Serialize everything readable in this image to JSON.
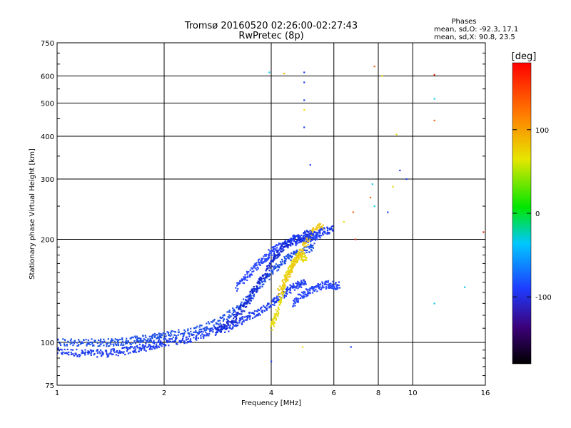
{
  "chart_data": {
    "type": "scatter",
    "title": "Tromsø 20160520 02:26:00-02:27:43",
    "subtitle": "RwPretec (8p)",
    "xlabel": "Frequency [MHz]",
    "ylabel": "Stationary phase Virtual Height [km]",
    "xscale": "log",
    "yscale": "log",
    "xlim": [
      1,
      16
    ],
    "ylim": [
      75,
      750
    ],
    "xticks": [
      1,
      2,
      4,
      6,
      8,
      10,
      16
    ],
    "xtick_labels": [
      "1",
      "2",
      "4",
      "6",
      "8",
      "10",
      "16"
    ],
    "yticks": [
      75,
      100,
      200,
      300,
      400,
      500,
      600,
      750
    ],
    "ytick_labels": [
      "75",
      "100",
      "200",
      "300",
      "400",
      "500",
      "600",
      "750"
    ],
    "grid": true,
    "stats": {
      "heading": "Phases",
      "lines": [
        "mean, sd,O: -92.3, 17.1",
        "mean, sd,X:  90.8, 23.5"
      ]
    },
    "colorbar": {
      "label": "[deg]",
      "range": [
        -180,
        180
      ],
      "ticks": [
        100,
        0,
        -100
      ],
      "tick_labels": [
        "100",
        "0",
        "-100"
      ]
    },
    "traces": [
      {
        "name": "trace-1",
        "color": "#1e3cf0",
        "points": [
          [
            1.0,
            94
          ],
          [
            1.2,
            93
          ],
          [
            1.4,
            93
          ],
          [
            1.6,
            95
          ],
          [
            1.8,
            97
          ],
          [
            2.0,
            100
          ],
          [
            2.3,
            102
          ],
          [
            2.6,
            106
          ],
          [
            3.0,
            110
          ],
          [
            3.4,
            118
          ],
          [
            3.8,
            125
          ],
          [
            4.2,
            135
          ],
          [
            4.6,
            145
          ],
          [
            5.0,
            150
          ]
        ]
      },
      {
        "name": "trace-2",
        "color": "#1e50e6",
        "points": [
          [
            1.0,
            100
          ],
          [
            1.2,
            100
          ],
          [
            1.4,
            100
          ],
          [
            1.6,
            101
          ],
          [
            1.8,
            103
          ],
          [
            2.0,
            105
          ],
          [
            2.4,
            108
          ],
          [
            2.8,
            114
          ],
          [
            3.2,
            125
          ],
          [
            3.6,
            140
          ],
          [
            4.0,
            160
          ],
          [
            4.4,
            175
          ],
          [
            4.8,
            185
          ],
          [
            5.3,
            190
          ]
        ]
      },
      {
        "name": "trace-3",
        "color": "#2846ff",
        "points": [
          [
            3.2,
            145
          ],
          [
            3.5,
            160
          ],
          [
            3.8,
            175
          ],
          [
            4.1,
            188
          ],
          [
            4.5,
            195
          ],
          [
            5.0,
            200
          ],
          [
            5.5,
            205
          ]
        ]
      },
      {
        "name": "trace-4",
        "color": "#1428d2",
        "points": [
          [
            2.8,
            108
          ],
          [
            3.1,
            115
          ],
          [
            3.4,
            130
          ],
          [
            3.7,
            150
          ],
          [
            4.0,
            170
          ],
          [
            4.3,
            190
          ],
          [
            4.7,
            200
          ],
          [
            5.2,
            210
          ]
        ]
      },
      {
        "name": "trace-5",
        "color": "#e6dc14",
        "points": [
          [
            4.0,
            110
          ],
          [
            4.2,
            125
          ],
          [
            4.4,
            155
          ],
          [
            4.6,
            170
          ],
          [
            4.8,
            180
          ],
          [
            5.0,
            175
          ]
        ]
      },
      {
        "name": "trace-6",
        "color": "#f0c814",
        "points": [
          [
            4.2,
            140
          ],
          [
            4.5,
            160
          ],
          [
            4.8,
            180
          ],
          [
            5.2,
            210
          ],
          [
            5.6,
            220
          ]
        ]
      },
      {
        "name": "trace-7",
        "color": "#2846ff",
        "points": [
          [
            4.6,
            130
          ],
          [
            5.0,
            140
          ],
          [
            5.4,
            145
          ],
          [
            5.8,
            148
          ],
          [
            6.2,
            145
          ]
        ]
      },
      {
        "name": "trace-8",
        "color": "#1e3cf0",
        "points": [
          [
            4.5,
            200
          ],
          [
            5.0,
            205
          ],
          [
            5.5,
            210
          ],
          [
            6.0,
            215
          ]
        ]
      }
    ],
    "isolated_points": [
      {
        "x": 3.95,
        "y": 615,
        "color": "#14c8e6"
      },
      {
        "x": 4.35,
        "y": 610,
        "color": "#f0b400"
      },
      {
        "x": 4.95,
        "y": 615,
        "color": "#1e3cf0"
      },
      {
        "x": 4.95,
        "y": 575,
        "color": "#1e3cf0"
      },
      {
        "x": 4.95,
        "y": 510,
        "color": "#1e3cf0"
      },
      {
        "x": 4.95,
        "y": 478,
        "color": "#f0dc14"
      },
      {
        "x": 4.95,
        "y": 425,
        "color": "#1e3cf0"
      },
      {
        "x": 5.15,
        "y": 330,
        "color": "#1e3cf0"
      },
      {
        "x": 7.8,
        "y": 640,
        "color": "#f06414"
      },
      {
        "x": 8.2,
        "y": 600,
        "color": "#e6dc14"
      },
      {
        "x": 11.5,
        "y": 605,
        "color": "#e63c14"
      },
      {
        "x": 11.5,
        "y": 515,
        "color": "#14c8e6"
      },
      {
        "x": 11.5,
        "y": 445,
        "color": "#f06414"
      },
      {
        "x": 9.0,
        "y": 405,
        "color": "#e6dc14"
      },
      {
        "x": 9.2,
        "y": 318,
        "color": "#1e3cf0"
      },
      {
        "x": 9.6,
        "y": 300,
        "color": "#1e3cf0"
      },
      {
        "x": 8.8,
        "y": 285,
        "color": "#e6dc14"
      },
      {
        "x": 7.7,
        "y": 290,
        "color": "#14c8e6"
      },
      {
        "x": 7.6,
        "y": 265,
        "color": "#f06414"
      },
      {
        "x": 7.8,
        "y": 250,
        "color": "#14c8e6"
      },
      {
        "x": 8.5,
        "y": 240,
        "color": "#1e3cf0"
      },
      {
        "x": 6.8,
        "y": 240,
        "color": "#f06414"
      },
      {
        "x": 6.4,
        "y": 225,
        "color": "#e6dc14"
      },
      {
        "x": 6.9,
        "y": 200,
        "color": "#e63c14"
      },
      {
        "x": 15.8,
        "y": 210,
        "color": "#e63c14"
      },
      {
        "x": 14.0,
        "y": 145,
        "color": "#14c8e6"
      },
      {
        "x": 11.5,
        "y": 130,
        "color": "#14c8e6"
      },
      {
        "x": 6.7,
        "y": 97,
        "color": "#1e3cf0"
      },
      {
        "x": 4.0,
        "y": 88,
        "color": "#1e3cf0"
      },
      {
        "x": 4.9,
        "y": 97,
        "color": "#f0dc14"
      },
      {
        "x": 6.2,
        "y": 150,
        "color": "#1e3cf0"
      }
    ]
  }
}
